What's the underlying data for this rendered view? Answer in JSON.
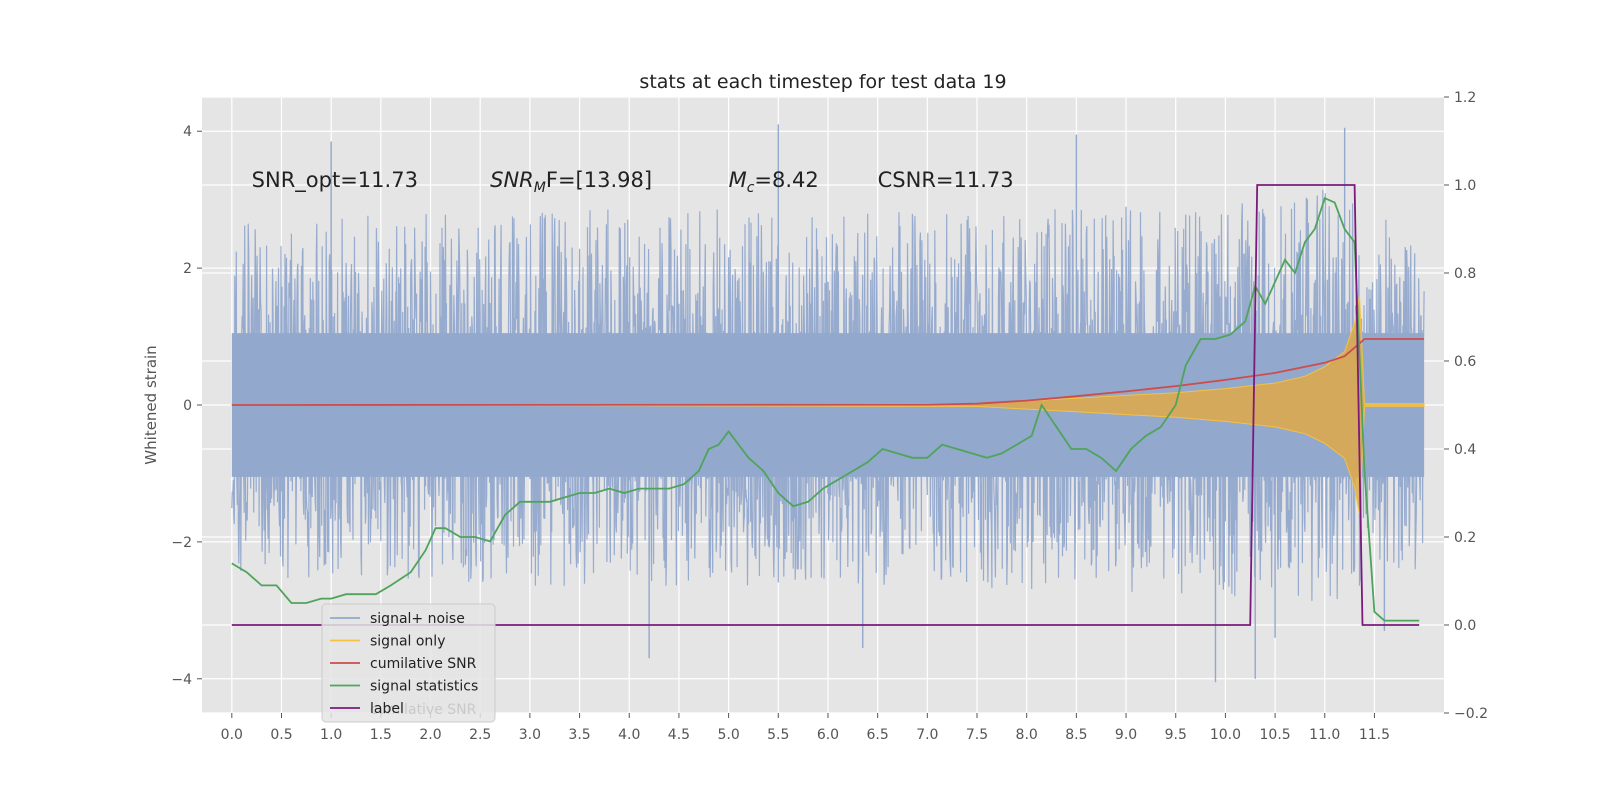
{
  "chart_data": {
    "type": "line",
    "title": "stats at each timestep for test data 19",
    "ylabel_left": "Whitened strain",
    "ylabel_right": "",
    "xlabel": "",
    "x_range": [
      -0.3,
      12.2
    ],
    "y_left_range": [
      -4.5,
      4.5
    ],
    "y_right_range": [
      -0.2,
      1.2
    ],
    "x_ticks": [
      "0.0",
      "0.5",
      "1.0",
      "1.5",
      "2.0",
      "2.5",
      "3.0",
      "3.5",
      "4.0",
      "4.5",
      "5.0",
      "5.5",
      "6.0",
      "6.5",
      "7.0",
      "7.5",
      "8.0",
      "8.5",
      "9.0",
      "9.5",
      "10.0",
      "10.5",
      "11.0",
      "11.5"
    ],
    "y_left_ticks": [
      "4",
      "2",
      "0",
      "−2",
      "−4"
    ],
    "y_right_ticks": [
      "1.2",
      "1.0",
      "0.8",
      "0.6",
      "0.4",
      "0.2",
      "0.0",
      "−0.2"
    ],
    "grid": true,
    "legend_position": "lower-left",
    "annotations": [
      {
        "prefix": "SNR_opt=11.73",
        "x": 0.2,
        "y": 3.3
      },
      {
        "prefix": "SNR",
        "sub": "M",
        "suffix": "F=[13.98]",
        "x": 2.6,
        "y": 3.3
      },
      {
        "prefix": "M",
        "sub": "c",
        "suffix": "=8.42",
        "x": 5.0,
        "y": 3.3
      },
      {
        "prefix": "CSNR=11.73",
        "x": 6.5,
        "y": 3.3
      }
    ],
    "ghost_legend_text": "cumilative SNR",
    "series": [
      {
        "name": "signal+ noise",
        "color": "#92a8cd",
        "axis": "left",
        "description_range": [
          0.0,
          12.0
        ],
        "envelope": {
          "x": [
            0,
            2,
            4,
            6,
            8,
            10,
            11,
            12
          ],
          "upper": [
            2.7,
            2.8,
            2.9,
            2.8,
            2.9,
            2.9,
            3.2,
            2.6
          ],
          "lower": [
            -2.5,
            -2.6,
            -2.7,
            -2.6,
            -2.7,
            -2.8,
            -3.0,
            -2.4
          ]
        },
        "spikes": [
          [
            5.5,
            4.1
          ],
          [
            11.2,
            4.05
          ],
          [
            8.5,
            3.95
          ],
          [
            1.0,
            3.85
          ],
          [
            9.9,
            -4.05
          ],
          [
            10.3,
            -4.0
          ],
          [
            4.2,
            -3.7
          ],
          [
            6.35,
            -3.55
          ],
          [
            10.5,
            -3.4
          ],
          [
            11.6,
            -3.3
          ],
          [
            6.0,
            1.8
          ],
          [
            6.0,
            -1.3
          ]
        ]
      },
      {
        "name": "signal only",
        "color": "#f5c242",
        "axis": "left",
        "x": [
          0.0,
          7.5,
          8.0,
          8.5,
          9.0,
          9.5,
          10.0,
          10.5,
          10.8,
          11.0,
          11.2,
          11.3,
          11.35,
          11.4,
          12.0
        ],
        "amplitude": [
          0.0,
          0.02,
          0.06,
          0.1,
          0.14,
          0.18,
          0.24,
          0.32,
          0.42,
          0.56,
          0.78,
          1.2,
          1.6,
          0.02,
          0.02
        ]
      },
      {
        "name": "cumilative SNR",
        "color": "#cd4d4a",
        "axis": "right",
        "x": [
          0.0,
          7.0,
          7.5,
          8.0,
          8.5,
          9.0,
          9.5,
          10.0,
          10.5,
          11.0,
          11.2,
          11.35,
          11.4,
          12.0
        ],
        "y": [
          0.5,
          0.501,
          0.503,
          0.51,
          0.52,
          0.531,
          0.543,
          0.557,
          0.573,
          0.596,
          0.611,
          0.64,
          0.65,
          0.65
        ]
      },
      {
        "name": "signal statistics",
        "color": "#4fa45b",
        "axis": "right",
        "x": [
          0.0,
          0.15,
          0.3,
          0.45,
          0.6,
          0.75,
          0.9,
          1.0,
          1.15,
          1.3,
          1.45,
          1.6,
          1.8,
          1.95,
          2.05,
          2.15,
          2.3,
          2.45,
          2.6,
          2.75,
          2.9,
          3.05,
          3.2,
          3.35,
          3.5,
          3.65,
          3.8,
          3.95,
          4.1,
          4.25,
          4.4,
          4.55,
          4.7,
          4.8,
          4.9,
          5.0,
          5.1,
          5.2,
          5.35,
          5.5,
          5.65,
          5.8,
          5.95,
          6.1,
          6.25,
          6.4,
          6.55,
          6.7,
          6.85,
          7.0,
          7.15,
          7.3,
          7.45,
          7.6,
          7.75,
          7.9,
          8.05,
          8.15,
          8.3,
          8.45,
          8.6,
          8.75,
          8.9,
          9.05,
          9.2,
          9.35,
          9.5,
          9.6,
          9.75,
          9.9,
          10.05,
          10.2,
          10.3,
          10.4,
          10.5,
          10.6,
          10.7,
          10.8,
          10.9,
          11.0,
          11.1,
          11.2,
          11.3,
          11.4,
          11.5,
          11.6,
          11.7,
          11.85,
          11.95
        ],
        "y": [
          0.14,
          0.12,
          0.09,
          0.09,
          0.05,
          0.05,
          0.06,
          0.06,
          0.07,
          0.07,
          0.07,
          0.09,
          0.12,
          0.17,
          0.22,
          0.22,
          0.2,
          0.2,
          0.19,
          0.25,
          0.28,
          0.28,
          0.28,
          0.29,
          0.3,
          0.3,
          0.31,
          0.3,
          0.31,
          0.31,
          0.31,
          0.32,
          0.35,
          0.4,
          0.41,
          0.44,
          0.41,
          0.38,
          0.35,
          0.3,
          0.27,
          0.28,
          0.31,
          0.33,
          0.35,
          0.37,
          0.4,
          0.39,
          0.38,
          0.38,
          0.41,
          0.4,
          0.39,
          0.38,
          0.39,
          0.41,
          0.43,
          0.5,
          0.45,
          0.4,
          0.4,
          0.38,
          0.35,
          0.4,
          0.43,
          0.45,
          0.5,
          0.59,
          0.65,
          0.65,
          0.66,
          0.69,
          0.77,
          0.73,
          0.78,
          0.83,
          0.8,
          0.87,
          0.9,
          0.97,
          0.96,
          0.9,
          0.87,
          0.35,
          0.03,
          0.01,
          0.01,
          0.01,
          0.01
        ]
      },
      {
        "name": "label",
        "color": "#7b1a7b",
        "axis": "right",
        "x": [
          0.0,
          10.25,
          10.32,
          11.3,
          11.38,
          11.95
        ],
        "y": [
          0.0,
          0.0,
          1.0,
          1.0,
          0.0,
          0.0
        ]
      }
    ]
  }
}
